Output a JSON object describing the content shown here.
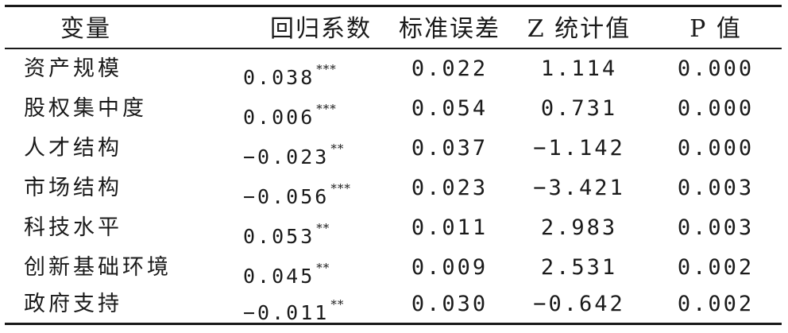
{
  "header": {
    "variable": "变量",
    "coefficient": "回归系数",
    "std_error": "标准误差",
    "z_stat": "Z 统计值",
    "p_value": "P 值"
  },
  "rows": [
    {
      "variable": "资产规模",
      "coef": "0.038",
      "sig": "***",
      "se": "0.022",
      "z": "1.114",
      "p": "0.000"
    },
    {
      "variable": "股权集中度",
      "coef": "0.006",
      "sig": "***",
      "se": "0.054",
      "z": "0.731",
      "p": "0.000"
    },
    {
      "variable": "人才结构",
      "coef": "−0.023",
      "sig": "**",
      "se": "0.037",
      "z": "−1.142",
      "p": "0.000"
    },
    {
      "variable": "市场结构",
      "coef": "−0.056",
      "sig": "***",
      "se": "0.023",
      "z": "−3.421",
      "p": "0.003"
    },
    {
      "variable": "科技水平",
      "coef": "0.053",
      "sig": "**",
      "se": "0.011",
      "z": "2.983",
      "p": "0.003"
    },
    {
      "variable": "创新基础环境",
      "coef": "0.045",
      "sig": "**",
      "se": "0.009",
      "z": "2.531",
      "p": "0.002"
    },
    {
      "variable": "政府支持",
      "coef": "−0.011",
      "sig": "**",
      "se": "0.030",
      "z": "−0.642",
      "p": "0.002"
    }
  ]
}
